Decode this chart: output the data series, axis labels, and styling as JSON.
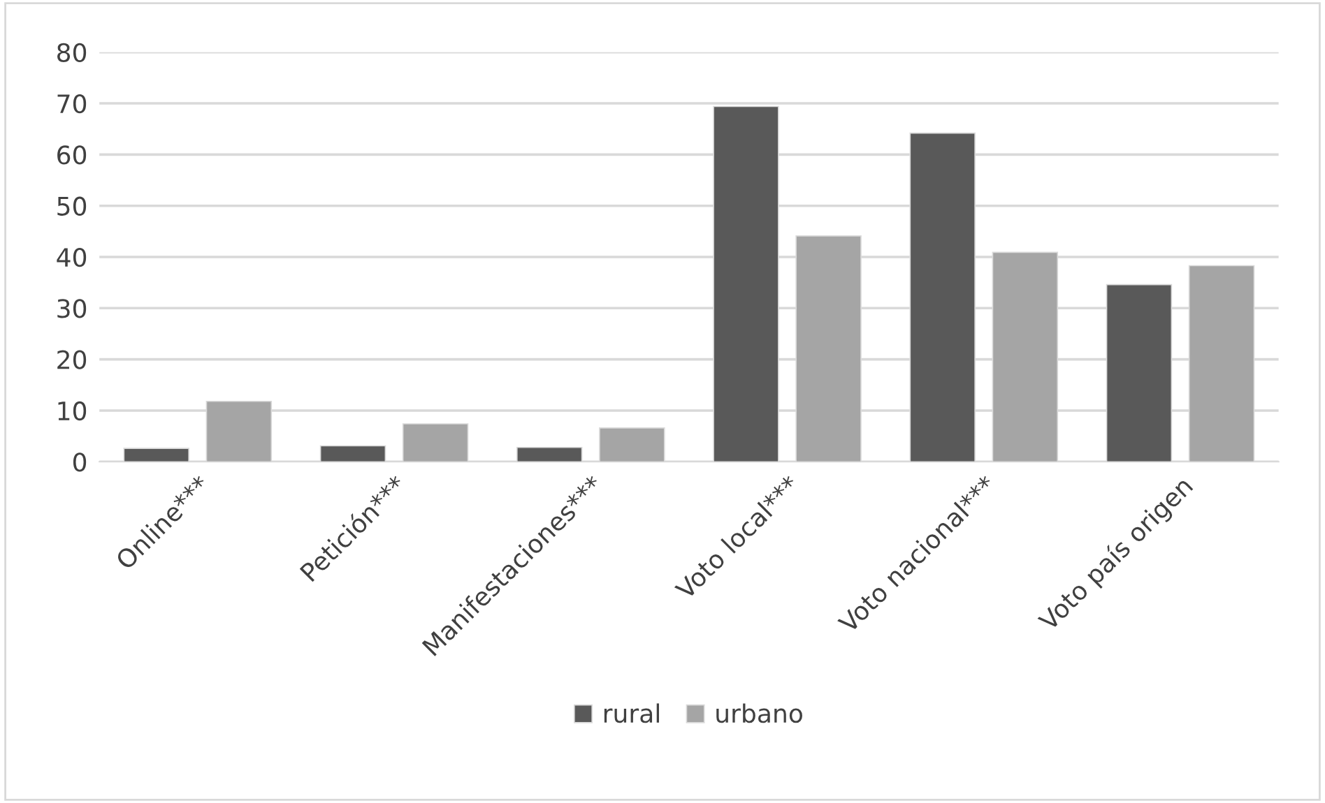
{
  "chart_data": {
    "type": "bar",
    "categories": [
      "Online***",
      "Petición***",
      "Manifestaciones***",
      "Voto local***",
      "Voto nacional***",
      "Voto país origen"
    ],
    "series": [
      {
        "name": "rural",
        "color": "#595959",
        "values": [
          2.6,
          3.1,
          2.8,
          69.4,
          64.2,
          34.6
        ]
      },
      {
        "name": "urbano",
        "color": "#a5a5a5",
        "values": [
          11.8,
          7.4,
          6.6,
          44.1,
          40.9,
          38.3
        ]
      }
    ],
    "ylim": [
      0,
      80
    ],
    "yticks": [
      0,
      10,
      20,
      30,
      40,
      50,
      60,
      70,
      80
    ],
    "grid": "y",
    "legend": "bottom"
  }
}
